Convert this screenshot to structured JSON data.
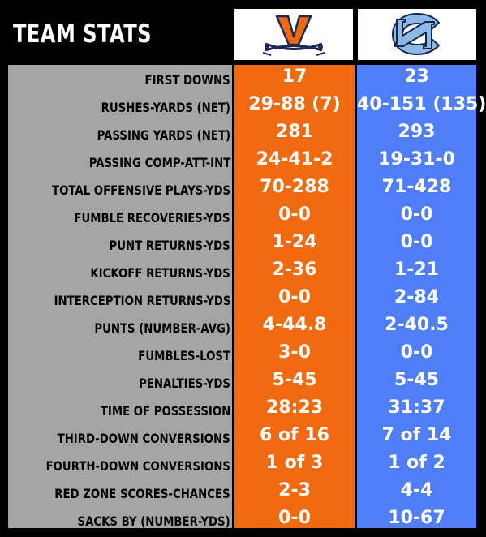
{
  "title": "TEAM STATS",
  "teams": [
    {
      "logo_icon": "virginia-v-sabres-logo",
      "color": "#F26A0F"
    },
    {
      "logo_icon": "unc-interlocking-nc-logo",
      "color": "#4F7EF8"
    }
  ],
  "label_column_color": "#A5A5A5",
  "rows": [
    {
      "label": "FIRST DOWNS",
      "uva": "17",
      "unc": "23"
    },
    {
      "label": "RUSHES-YARDS (NET)",
      "uva": "29-88 (7)",
      "unc": "40-151 (135)"
    },
    {
      "label": "PASSING YARDS (NET)",
      "uva": "281",
      "unc": "293"
    },
    {
      "label": "PASSING COMP-ATT-INT",
      "uva": "24-41-2",
      "unc": "19-31-0"
    },
    {
      "label": "TOTAL OFFENSIVE PLAYS-YDS",
      "uva": "70-288",
      "unc": "71-428"
    },
    {
      "label": "FUMBLE RECOVERIES-YDS",
      "uva": "0-0",
      "unc": "0-0"
    },
    {
      "label": "PUNT RETURNS-YDS",
      "uva": "1-24",
      "unc": "0-0"
    },
    {
      "label": "KICKOFF RETURNS-YDS",
      "uva": "2-36",
      "unc": "1-21"
    },
    {
      "label": "INTERCEPTION RETURNS-YDS",
      "uva": "0-0",
      "unc": "2-84"
    },
    {
      "label": "PUNTS (NUMBER-AVG)",
      "uva": "4-44.8",
      "unc": "2-40.5"
    },
    {
      "label": "FUMBLES-LOST",
      "uva": "3-0",
      "unc": "0-0"
    },
    {
      "label": "PENALTIES-YDS",
      "uva": "5-45",
      "unc": "5-45"
    },
    {
      "label": "TIME OF POSSESSION",
      "uva": "28:23",
      "unc": "31:37"
    },
    {
      "label": "THIRD-DOWN CONVERSIONS",
      "uva": "6 of 16",
      "unc": "7 of 14"
    },
    {
      "label": "FOURTH-DOWN CONVERSIONS",
      "uva": "1 of 3",
      "unc": "1 of 2"
    },
    {
      "label": "RED ZONE SCORES-CHANCES",
      "uva": "2-3",
      "unc": "4-4"
    },
    {
      "label": "SACKS BY (NUMBER-YDS)",
      "uva": "0-0",
      "unc": "10-67"
    }
  ]
}
